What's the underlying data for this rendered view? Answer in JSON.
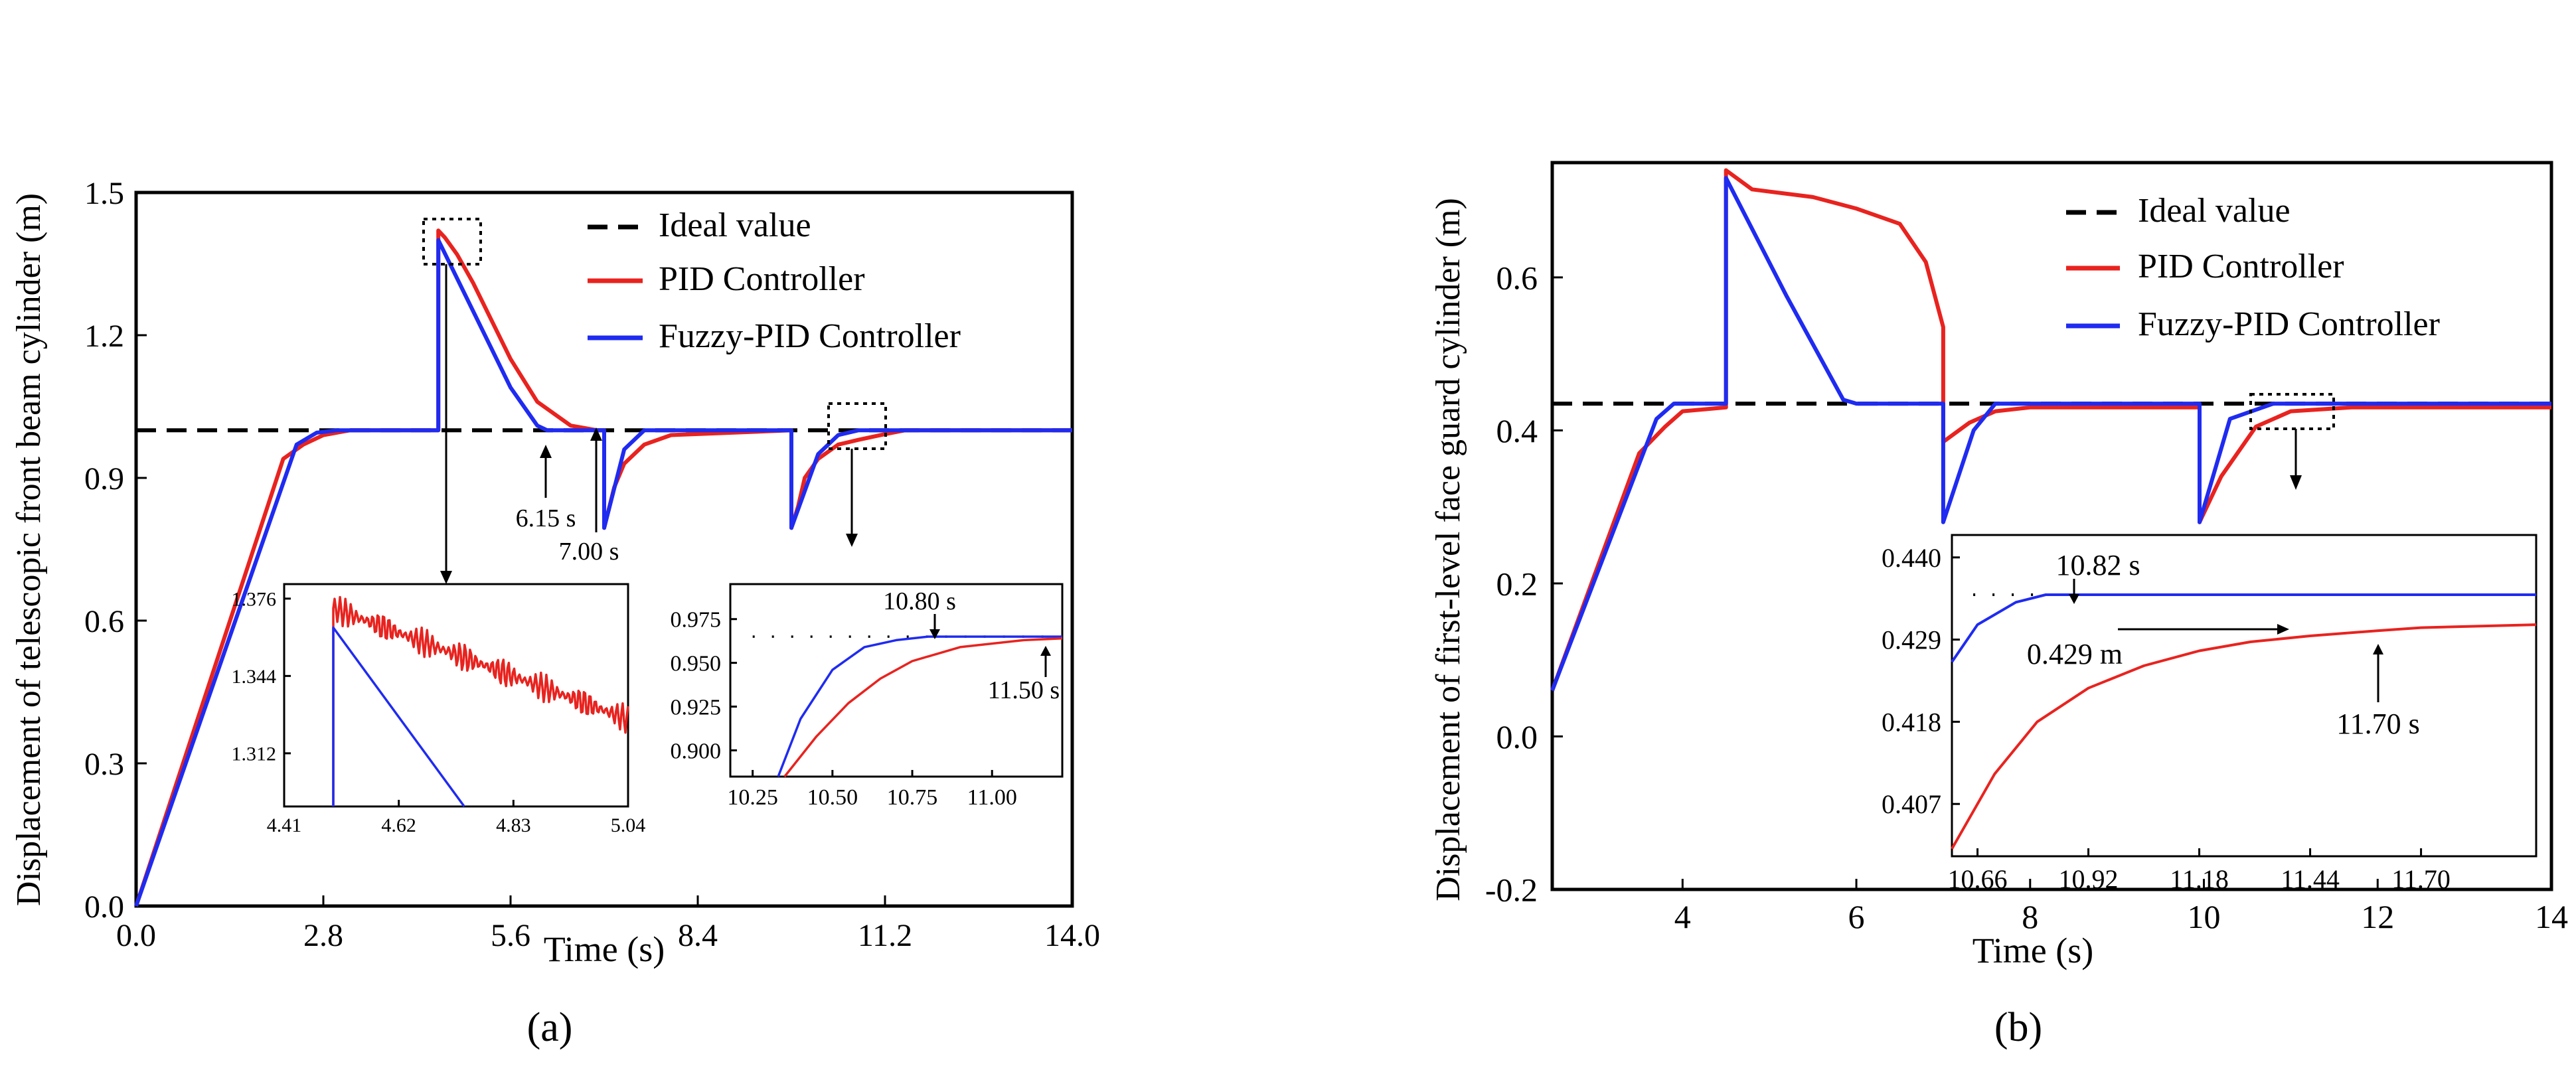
{
  "colors": {
    "ideal": "#000000",
    "pid": "#e8231f",
    "fuzzy": "#1f2bf0",
    "axis": "#000000"
  },
  "chart_data": [
    {
      "id": "a",
      "type": "line",
      "panel_label": "(a)",
      "xlabel": "Time (s)",
      "ylabel": "Displacement of telescopic front beam cylinder (m)",
      "xlim": [
        0,
        14
      ],
      "ylim": [
        0,
        1.5
      ],
      "xticks": [
        "0.0",
        "2.8",
        "5.6",
        "8.4",
        "11.2",
        "14.0"
      ],
      "yticks": [
        "0.0",
        "0.3",
        "0.6",
        "0.9",
        "1.2",
        "1.5"
      ],
      "legend_position": "top-right",
      "series": [
        {
          "name": "Ideal value",
          "style": "dashed",
          "color_key": "ideal",
          "x": [
            0,
            14
          ],
          "y": [
            1.0,
            1.0
          ]
        },
        {
          "name": "PID Controller",
          "style": "solid",
          "color_key": "pid",
          "x": [
            0,
            2.2,
            2.5,
            2.8,
            3.2,
            4.0,
            4.52,
            4.52,
            4.62,
            4.8,
            5.04,
            5.6,
            6.0,
            6.5,
            6.9,
            7.0,
            7.0,
            7.15,
            7.3,
            7.6,
            8.0,
            9.8,
            9.8,
            9.9,
            10.0,
            10.2,
            10.5,
            10.8,
            11.2,
            11.5,
            14.0
          ],
          "y": [
            0,
            0.94,
            0.97,
            0.99,
            1.0,
            1.0,
            1.0,
            1.42,
            1.405,
            1.37,
            1.31,
            1.15,
            1.06,
            1.01,
            1.0,
            1.0,
            0.795,
            0.88,
            0.93,
            0.97,
            0.99,
            1.0,
            0.795,
            0.84,
            0.9,
            0.94,
            0.97,
            0.98,
            0.992,
            1.0,
            1.0
          ]
        },
        {
          "name": "Fuzzy-PID Controller",
          "style": "solid",
          "color_key": "fuzzy",
          "x": [
            0,
            2.4,
            2.7,
            3.0,
            4.0,
            4.52,
            4.52,
            5.6,
            6.0,
            6.15,
            7.0,
            7.0,
            7.3,
            7.6,
            9.8,
            9.8,
            10.2,
            10.5,
            10.8,
            14.0
          ],
          "y": [
            0,
            0.97,
            0.995,
            1.0,
            1.0,
            1.0,
            1.4,
            1.09,
            1.01,
            1.0,
            1.0,
            0.795,
            0.96,
            1.0,
            1.0,
            0.795,
            0.95,
            0.99,
            1.0,
            1.0
          ]
        }
      ],
      "annotations": [
        "6.15 s",
        "7.00 s"
      ],
      "insets": [
        {
          "id": "a-inset-1",
          "xlim": [
            4.41,
            5.04
          ],
          "ylim": [
            1.29,
            1.382
          ],
          "xticks": [
            "4.41",
            "4.62",
            "4.83",
            "5.04"
          ],
          "yticks": [
            "1.312",
            "1.344",
            "1.376"
          ],
          "series": [
            {
              "color_key": "pid",
              "x": [
                4.5,
                4.5,
                5.04
              ],
              "y": [
                1.29,
                1.372,
                1.326
              ],
              "oscillation": 0.006
            },
            {
              "color_key": "fuzzy",
              "x": [
                4.5,
                4.5,
                4.74
              ],
              "y": [
                1.29,
                1.364,
                1.29
              ]
            }
          ],
          "annotations": []
        },
        {
          "id": "a-inset-2",
          "xlim": [
            10.18,
            11.22
          ],
          "ylim": [
            0.885,
            0.995
          ],
          "xticks": [
            "10.25",
            "10.50",
            "10.75",
            "11.00"
          ],
          "yticks": [
            "0.900",
            "0.925",
            "0.950",
            "0.975"
          ],
          "series": [
            {
              "color_key": "ideal",
              "style": "dotted",
              "x": [
                10.25,
                11.22
              ],
              "y": [
                0.965,
                0.965
              ]
            },
            {
              "color_key": "fuzzy",
              "x": [
                10.33,
                10.4,
                10.5,
                10.6,
                10.7,
                10.8,
                11.0,
                11.22
              ],
              "y": [
                0.885,
                0.918,
                0.946,
                0.959,
                0.963,
                0.965,
                0.965,
                0.965
              ]
            },
            {
              "color_key": "pid",
              "x": [
                10.35,
                10.45,
                10.55,
                10.65,
                10.75,
                10.9,
                11.1,
                11.22
              ],
              "y": [
                0.885,
                0.908,
                0.927,
                0.941,
                0.951,
                0.959,
                0.963,
                0.964
              ]
            }
          ],
          "annotations": [
            "10.80 s",
            "11.50 s"
          ]
        }
      ]
    },
    {
      "id": "b",
      "type": "line",
      "panel_label": "(b)",
      "xlabel": "Time (s)",
      "ylabel": "Displacement of first-level face guard cylinder (m)",
      "xlim": [
        2.5,
        14
      ],
      "ylim": [
        -0.2,
        0.75
      ],
      "xticks": [
        "4",
        "6",
        "8",
        "10",
        "12",
        "14"
      ],
      "yticks": [
        "-0.2",
        "0.0",
        "0.2",
        "0.4",
        "0.6"
      ],
      "legend_position": "top-right",
      "series": [
        {
          "name": "Ideal value",
          "style": "dashed",
          "color_key": "ideal",
          "x": [
            2.5,
            14
          ],
          "y": [
            0.435,
            0.435
          ]
        },
        {
          "name": "PID Controller",
          "style": "solid",
          "color_key": "pid",
          "x": [
            2.5,
            3.5,
            3.8,
            4.0,
            4.5,
            4.5,
            4.8,
            5.5,
            6.0,
            6.5,
            6.8,
            7.0,
            7.0,
            7.3,
            7.6,
            8.0,
            9.95,
            9.95,
            10.2,
            10.6,
            11.0,
            11.7,
            14.0
          ],
          "y": [
            0.06,
            0.37,
            0.405,
            0.425,
            0.43,
            0.74,
            0.715,
            0.705,
            0.69,
            0.67,
            0.62,
            0.535,
            0.385,
            0.41,
            0.425,
            0.43,
            0.43,
            0.28,
            0.34,
            0.405,
            0.425,
            0.43,
            0.43
          ]
        },
        {
          "name": "Fuzzy-PID Controller",
          "style": "solid",
          "color_key": "fuzzy",
          "x": [
            2.5,
            3.7,
            3.9,
            4.5,
            4.5,
            5.2,
            5.85,
            6.0,
            7.0,
            7.0,
            7.35,
            7.6,
            9.95,
            9.95,
            10.3,
            10.8,
            14.0
          ],
          "y": [
            0.06,
            0.415,
            0.435,
            0.435,
            0.73,
            0.575,
            0.44,
            0.435,
            0.435,
            0.28,
            0.4,
            0.435,
            0.435,
            0.28,
            0.415,
            0.435,
            0.435
          ]
        }
      ],
      "annotations": [],
      "insets": [
        {
          "id": "b-inset-1",
          "xlim": [
            10.6,
            11.97
          ],
          "ylim": [
            0.4,
            0.443
          ],
          "xticks": [
            "10.66",
            "10.92",
            "11.18",
            "11.44",
            "11.70"
          ],
          "yticks": [
            "0.407",
            "0.418",
            "0.429",
            "0.440"
          ],
          "series": [
            {
              "color_key": "ideal",
              "style": "dotted",
              "x": [
                10.65,
                11.97
              ],
              "y": [
                0.435,
                0.435
              ]
            },
            {
              "color_key": "fuzzy",
              "x": [
                10.6,
                10.66,
                10.75,
                10.82,
                11.0,
                11.97
              ],
              "y": [
                0.426,
                0.431,
                0.434,
                0.435,
                0.435,
                0.435
              ]
            },
            {
              "color_key": "pid",
              "x": [
                10.6,
                10.7,
                10.8,
                10.92,
                11.05,
                11.18,
                11.3,
                11.44,
                11.6,
                11.7,
                11.97
              ],
              "y": [
                0.401,
                0.411,
                0.418,
                0.4225,
                0.4255,
                0.4275,
                0.4287,
                0.4295,
                0.4302,
                0.4306,
                0.431
              ]
            }
          ],
          "annotations": [
            "10.82 s",
            "0.429 m",
            "11.70 s"
          ]
        }
      ]
    }
  ]
}
